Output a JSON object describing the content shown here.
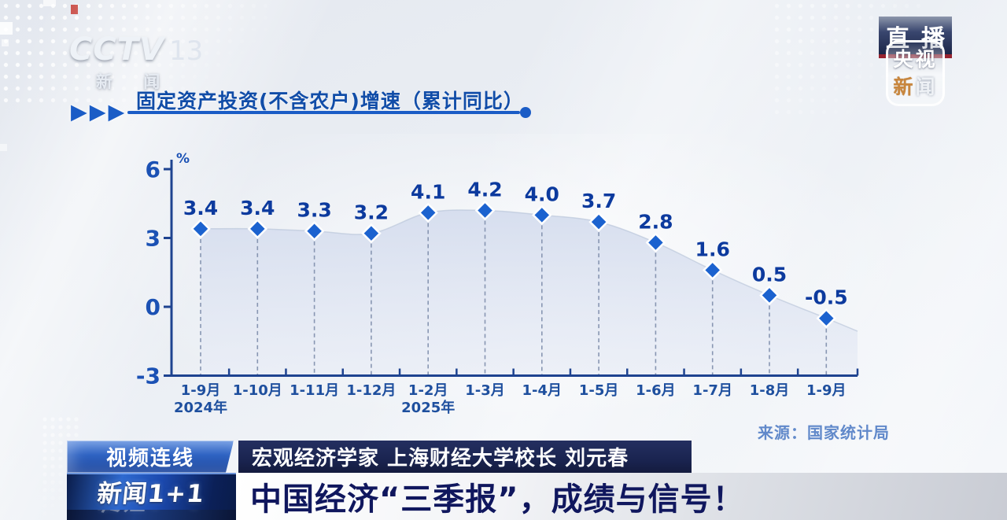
{
  "header": {
    "channel_logo": {
      "name": "CCTV",
      "number": "13",
      "subtitle": "新 闻"
    },
    "live_badge": {
      "char1": "直",
      "char2": "播"
    },
    "news_app_logo": {
      "top": "央视",
      "bottom_accent": "新",
      "bottom_rest": "闻"
    }
  },
  "chart_header": {
    "arrows": "▶▶▶",
    "title": "固定资产投资(不含农户)增速（累计同比）"
  },
  "chart_data": {
    "type": "area",
    "title": "固定资产投资(不含农户)增速（累计同比）",
    "categories": [
      "1-9月",
      "1-10月",
      "1-11月",
      "1-12月",
      "1-2月",
      "1-3月",
      "1-4月",
      "1-5月",
      "1-6月",
      "1-7月",
      "1-8月",
      "1-9月"
    ],
    "values": [
      3.4,
      3.4,
      3.3,
      3.2,
      4.1,
      4.2,
      4.0,
      3.7,
      2.8,
      1.6,
      0.5,
      -0.5
    ],
    "year_markers": [
      {
        "index": 0,
        "label": "2024年"
      },
      {
        "index": 4,
        "label": "2025年"
      }
    ],
    "unit_label": "%",
    "ylim": [
      -3,
      6
    ],
    "yticks": [
      6,
      3,
      0,
      -3
    ],
    "grid": false,
    "legend": "none",
    "marker": "diamond",
    "colors": {
      "marker": "#1b62cf",
      "marker_stroke": "#ffffff",
      "value_label": "#0c3a9e",
      "axis": "#1e4390",
      "tick_label": "#1b51b4",
      "category_label": "#1e4f9e",
      "stem": "#8896b2",
      "area_top": "#d5ddee",
      "area_bottom": "#e9edf6",
      "edge": "#b9c4d8"
    }
  },
  "source": {
    "label": "来源：国家统计局"
  },
  "banner": {
    "tag": "视频连线",
    "speaker": "宏观经济学家 上海财经大学校长 刘元春",
    "program_logo": "新闻1+1",
    "headline": "中国经济“三季报”，成绩与信号！"
  }
}
